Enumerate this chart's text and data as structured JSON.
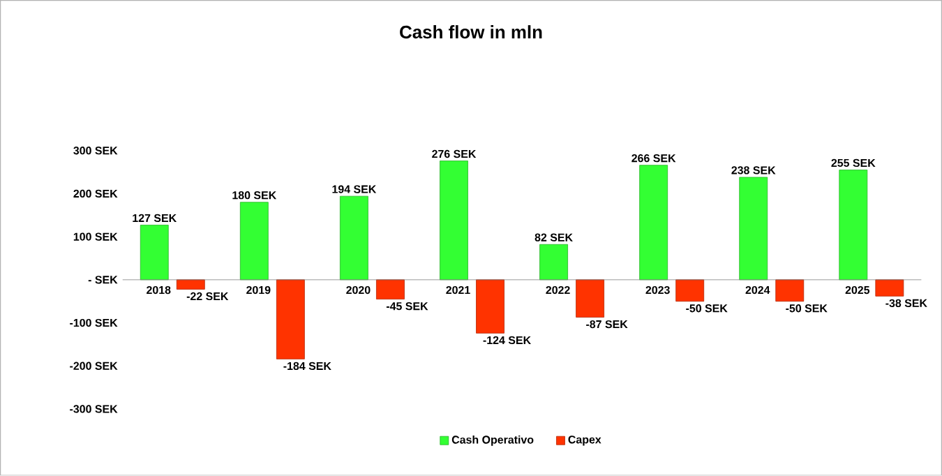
{
  "chart_data": {
    "type": "bar",
    "title": "Cash flow in mln",
    "categories": [
      "2018",
      "2019",
      "2020",
      "2021",
      "2022",
      "2023",
      "2024",
      "2025"
    ],
    "series": [
      {
        "name": "Cash Operativo",
        "color": "#33ff33",
        "values": [
          127,
          180,
          194,
          276,
          82,
          266,
          238,
          255
        ],
        "value_labels": [
          "127 SEK",
          "180 SEK",
          "194 SEK",
          "276 SEK",
          "82 SEK",
          "266 SEK",
          "238 SEK",
          "255 SEK"
        ]
      },
      {
        "name": "Capex",
        "color": "#ff3300",
        "values": [
          -22,
          -184,
          -45,
          -124,
          -87,
          -50,
          -50,
          -38
        ],
        "value_labels": [
          "-22 SEK",
          "-184 SEK",
          "-45 SEK",
          "-124 SEK",
          "-87 SEK",
          "-50 SEK",
          "-50 SEK",
          "-38 SEK"
        ]
      }
    ],
    "ylim": [
      -300,
      300
    ],
    "yticks": [
      {
        "value": -300,
        "label": "-300 SEK"
      },
      {
        "value": -200,
        "label": "-200 SEK"
      },
      {
        "value": -100,
        "label": "-100 SEK"
      },
      {
        "value": 0,
        "label": "- SEK"
      },
      {
        "value": 100,
        "label": "100 SEK"
      },
      {
        "value": 200,
        "label": "200 SEK"
      },
      {
        "value": 300,
        "label": "300 SEK"
      }
    ],
    "legend": "bottom"
  }
}
